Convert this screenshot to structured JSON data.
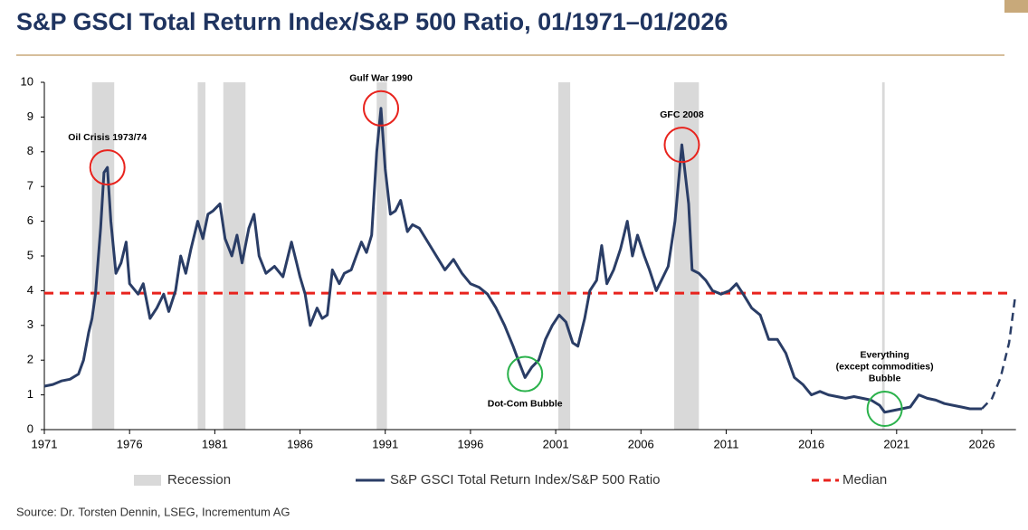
{
  "chart_data": {
    "type": "line",
    "title": "S&P GSCI Total Return Index/S&P 500 Ratio, 01/1971–01/2026",
    "source": "Source: Dr. Torsten Dennin, LSEG, Incrementum AG",
    "xlim": [
      1971,
      2028
    ],
    "xticks": [
      1971,
      1976,
      1981,
      1986,
      1991,
      1996,
      2001,
      2006,
      2011,
      2016,
      2021,
      2026
    ],
    "ylim": [
      0,
      10
    ],
    "yticks": [
      0,
      1,
      2,
      3,
      4,
      5,
      6,
      7,
      8,
      9,
      10
    ],
    "recessions": {
      "name": "Recession",
      "color": "#d9d9d9",
      "periods": [
        [
          1973.8,
          1975.1
        ],
        [
          1980.0,
          1980.45
        ],
        [
          1981.5,
          1982.8
        ],
        [
          1990.5,
          1991.1
        ],
        [
          2001.15,
          2001.85
        ],
        [
          2007.95,
          2009.4
        ],
        [
          2020.15,
          2020.3
        ]
      ]
    },
    "median": {
      "name": "Median",
      "value": 3.93,
      "color": "#e8231d"
    },
    "series": [
      {
        "name": "S&P GSCI Total Return Index/S&P 500 Ratio",
        "color": "#2a3d66",
        "x": [
          1971.0,
          1971.5,
          1972.0,
          1972.5,
          1973.0,
          1973.3,
          1973.6,
          1973.8,
          1974.0,
          1974.3,
          1974.5,
          1974.7,
          1974.9,
          1975.2,
          1975.5,
          1975.8,
          1976.0,
          1976.5,
          1976.8,
          1977.2,
          1977.6,
          1978.0,
          1978.3,
          1978.7,
          1979.0,
          1979.3,
          1979.6,
          1980.0,
          1980.3,
          1980.6,
          1980.9,
          1981.3,
          1981.6,
          1982.0,
          1982.3,
          1982.6,
          1983.0,
          1983.3,
          1983.6,
          1984.0,
          1984.5,
          1985.0,
          1985.5,
          1985.8,
          1986.0,
          1986.3,
          1986.6,
          1987.0,
          1987.3,
          1987.6,
          1987.9,
          1988.3,
          1988.6,
          1989.0,
          1989.3,
          1989.6,
          1989.9,
          1990.2,
          1990.5,
          1990.75,
          1991.0,
          1991.3,
          1991.6,
          1991.9,
          1992.3,
          1992.6,
          1993.0,
          1993.5,
          1994.0,
          1994.5,
          1995.0,
          1995.5,
          1996.0,
          1996.5,
          1997.0,
          1997.5,
          1998.0,
          1998.5,
          1998.8,
          1999.2,
          1999.6,
          2000.0,
          2000.4,
          2000.8,
          2001.2,
          2001.6,
          2002.0,
          2002.3,
          2002.7,
          2003.0,
          2003.4,
          2003.7,
          2004.0,
          2004.4,
          2004.8,
          2005.2,
          2005.5,
          2005.8,
          2006.2,
          2006.5,
          2006.9,
          2007.2,
          2007.6,
          2008.0,
          2008.4,
          2008.8,
          2009.0,
          2009.4,
          2009.8,
          2010.2,
          2010.7,
          2011.2,
          2011.6,
          2012.0,
          2012.5,
          2013.0,
          2013.5,
          2014.0,
          2014.5,
          2015.0,
          2015.5,
          2016.0,
          2016.5,
          2017.0,
          2017.5,
          2018.0,
          2018.5,
          2019.0,
          2019.5,
          2020.0,
          2020.3,
          2020.8,
          2021.3,
          2021.8,
          2022.3,
          2022.8,
          2023.3,
          2023.8,
          2024.3,
          2024.8,
          2025.3,
          2026.0
        ],
        "values": [
          1.25,
          1.3,
          1.4,
          1.45,
          1.6,
          2.0,
          2.8,
          3.2,
          3.9,
          5.8,
          7.4,
          7.55,
          6.0,
          4.5,
          4.8,
          5.4,
          4.2,
          3.9,
          4.2,
          3.2,
          3.5,
          3.9,
          3.4,
          4.0,
          5.0,
          4.5,
          5.2,
          6.0,
          5.5,
          6.2,
          6.3,
          6.5,
          5.5,
          5.0,
          5.6,
          4.8,
          5.8,
          6.2,
          5.0,
          4.5,
          4.7,
          4.4,
          5.4,
          4.8,
          4.4,
          3.9,
          3.0,
          3.5,
          3.2,
          3.3,
          4.6,
          4.2,
          4.5,
          4.6,
          5.0,
          5.4,
          5.1,
          5.6,
          8.0,
          9.25,
          7.5,
          6.2,
          6.3,
          6.6,
          5.7,
          5.9,
          5.8,
          5.4,
          5.0,
          4.6,
          4.9,
          4.5,
          4.2,
          4.1,
          3.9,
          3.5,
          3.0,
          2.4,
          2.0,
          1.5,
          1.8,
          2.0,
          2.6,
          3.0,
          3.3,
          3.1,
          2.5,
          2.4,
          3.2,
          4.0,
          4.3,
          5.3,
          4.2,
          4.6,
          5.2,
          6.0,
          5.0,
          5.6,
          5.0,
          4.6,
          4.0,
          4.3,
          4.7,
          6.0,
          8.2,
          6.5,
          4.6,
          4.5,
          4.3,
          4.0,
          3.9,
          4.0,
          4.2,
          3.9,
          3.5,
          3.3,
          2.6,
          2.6,
          2.2,
          1.5,
          1.3,
          1.0,
          1.1,
          1.0,
          0.95,
          0.9,
          0.95,
          0.9,
          0.85,
          0.7,
          0.5,
          0.55,
          0.6,
          0.65,
          1.0,
          0.9,
          0.85,
          0.75,
          0.7,
          0.65,
          0.6,
          0.6
        ]
      },
      {
        "color": "#2a3d66",
        "dashed": true,
        "x": [
          2026.0,
          2026.6,
          2027.1,
          2027.6,
          2027.95
        ],
        "values": [
          0.6,
          0.9,
          1.5,
          2.5,
          3.8
        ]
      }
    ],
    "annotations": [
      {
        "lines": [
          "Oil Crisis 1973/74"
        ],
        "x": 1974.7,
        "y": 7.55,
        "color": "#e8231d",
        "position": "above"
      },
      {
        "lines": [
          "Gulf War 1990"
        ],
        "x": 1990.75,
        "y": 9.25,
        "color": "#e8231d",
        "position": "above"
      },
      {
        "lines": [
          "GFC 2008"
        ],
        "x": 2008.4,
        "y": 8.2,
        "color": "#e8231d",
        "position": "above"
      },
      {
        "lines": [
          "Dot-Com Bubble"
        ],
        "x": 1999.2,
        "y": 1.6,
        "color": "#2bb24c",
        "position": "below"
      },
      {
        "lines": [
          "Everything",
          "(except commodities)",
          "Bubble"
        ],
        "x": 2020.3,
        "y": 0.6,
        "color": "#2bb24c",
        "position": "above"
      }
    ]
  }
}
